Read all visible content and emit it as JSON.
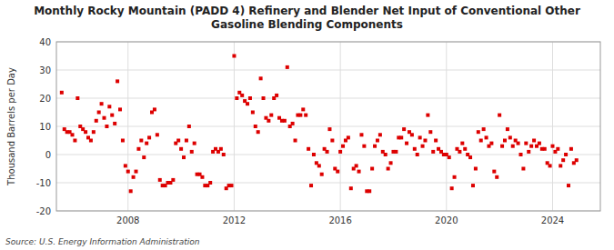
{
  "chart_data": {
    "type": "scatter",
    "title": "Monthly Rocky Mountain (PADD 4) Refinery and Blender Net Input of Conventional Other\nGasoline Blending Components",
    "y_label": "Thousand Barrels per Day",
    "source": "Source: U.S. Energy Information Administration",
    "color": "#dd0000",
    "marker": "square",
    "grid": true,
    "xlim": [
      2005.3,
      2025.8
    ],
    "xticks": [
      2008,
      2012,
      2016,
      2020,
      2024
    ],
    "ylim": [
      -20,
      40
    ],
    "yticks": [
      -20,
      -10,
      0,
      10,
      20,
      30,
      40
    ],
    "x": [
      2005.5,
      2005.6,
      2005.7,
      2005.8,
      2005.9,
      2006.0,
      2006.1,
      2006.2,
      2006.3,
      2006.4,
      2006.5,
      2006.6,
      2006.7,
      2006.8,
      2006.9,
      2007.0,
      2007.1,
      2007.2,
      2007.3,
      2007.4,
      2007.5,
      2007.6,
      2007.7,
      2007.8,
      2007.9,
      2008.0,
      2008.1,
      2008.2,
      2008.3,
      2008.4,
      2008.5,
      2008.6,
      2008.7,
      2008.8,
      2008.9,
      2009.0,
      2009.1,
      2009.2,
      2009.3,
      2009.4,
      2009.5,
      2009.6,
      2009.7,
      2009.8,
      2009.9,
      2010.0,
      2010.1,
      2010.2,
      2010.3,
      2010.4,
      2010.5,
      2010.6,
      2010.7,
      2010.8,
      2010.9,
      2011.0,
      2011.1,
      2011.2,
      2011.3,
      2011.4,
      2011.5,
      2011.6,
      2011.7,
      2011.8,
      2011.9,
      2012.0,
      2012.1,
      2012.2,
      2012.3,
      2012.4,
      2012.5,
      2012.6,
      2012.7,
      2012.8,
      2012.9,
      2013.0,
      2013.1,
      2013.2,
      2013.3,
      2013.4,
      2013.5,
      2013.6,
      2013.7,
      2013.8,
      2013.9,
      2014.0,
      2014.1,
      2014.2,
      2014.3,
      2014.4,
      2014.5,
      2014.6,
      2014.7,
      2014.8,
      2014.9,
      2015.0,
      2015.1,
      2015.2,
      2015.3,
      2015.4,
      2015.5,
      2015.6,
      2015.7,
      2015.8,
      2015.9,
      2016.0,
      2016.1,
      2016.2,
      2016.3,
      2016.4,
      2016.5,
      2016.6,
      2016.7,
      2016.8,
      2016.9,
      2017.0,
      2017.1,
      2017.2,
      2017.3,
      2017.4,
      2017.5,
      2017.6,
      2017.7,
      2017.8,
      2017.9,
      2018.0,
      2018.1,
      2018.2,
      2018.3,
      2018.4,
      2018.5,
      2018.6,
      2018.7,
      2018.8,
      2018.9,
      2019.0,
      2019.1,
      2019.2,
      2019.3,
      2019.4,
      2019.5,
      2019.6,
      2019.7,
      2019.8,
      2019.9,
      2020.0,
      2020.1,
      2020.2,
      2020.3,
      2020.4,
      2020.5,
      2020.6,
      2020.7,
      2020.8,
      2020.9,
      2021.0,
      2021.1,
      2021.2,
      2021.3,
      2021.4,
      2021.5,
      2021.6,
      2021.7,
      2021.8,
      2021.9,
      2022.0,
      2022.1,
      2022.2,
      2022.3,
      2022.4,
      2022.5,
      2022.6,
      2022.7,
      2022.8,
      2022.9,
      2023.0,
      2023.1,
      2023.2,
      2023.3,
      2023.4,
      2023.5,
      2023.6,
      2023.7,
      2023.8,
      2023.9,
      2024.0,
      2024.1,
      2024.2,
      2024.3,
      2024.4,
      2024.5,
      2024.6,
      2024.7,
      2024.8,
      2024.9
    ],
    "values": [
      22,
      9,
      8,
      8,
      7,
      5,
      20,
      10,
      9,
      8,
      6,
      5,
      8,
      12,
      15,
      18,
      13,
      10,
      17,
      14,
      11,
      26,
      16,
      5,
      -4,
      -6,
      -13,
      -8,
      -6,
      2,
      5,
      -1,
      4,
      6,
      15,
      16,
      7,
      -9,
      -11,
      -11,
      -10,
      -10,
      -9,
      4,
      5,
      2,
      -1,
      5,
      10,
      1,
      4,
      -7,
      -7,
      -8,
      -11,
      -11,
      -10,
      1,
      2,
      1,
      2,
      0,
      -12,
      -11,
      -11,
      35,
      20,
      22,
      21,
      19,
      18,
      20,
      15,
      10,
      8,
      27,
      20,
      13,
      12,
      14,
      20,
      21,
      13,
      12,
      12,
      31,
      10,
      11,
      5,
      14,
      14,
      16,
      14,
      2,
      -11,
      0,
      -3,
      -4,
      -7,
      2,
      1,
      9,
      5,
      -5,
      -6,
      1,
      3,
      5,
      6,
      -12,
      -5,
      -4,
      -6,
      7,
      3,
      -13,
      -13,
      -5,
      3,
      5,
      7,
      1,
      0,
      -5,
      -3,
      1,
      1,
      6,
      6,
      9,
      4,
      8,
      7,
      2,
      0,
      6,
      3,
      5,
      14,
      8,
      1,
      5,
      2,
      1,
      0,
      0,
      -1,
      -12,
      -8,
      2,
      1,
      4,
      2,
      0,
      -1,
      -11,
      -5,
      8,
      5,
      9,
      6,
      3,
      4,
      -6,
      -8,
      14,
      3,
      5,
      9,
      6,
      3,
      5,
      4,
      0,
      -5,
      4,
      1,
      3,
      5,
      3,
      4,
      2,
      2,
      -3,
      -4,
      3,
      1,
      2,
      -4,
      -2,
      0,
      -11,
      2,
      -3,
      -2
    ]
  }
}
